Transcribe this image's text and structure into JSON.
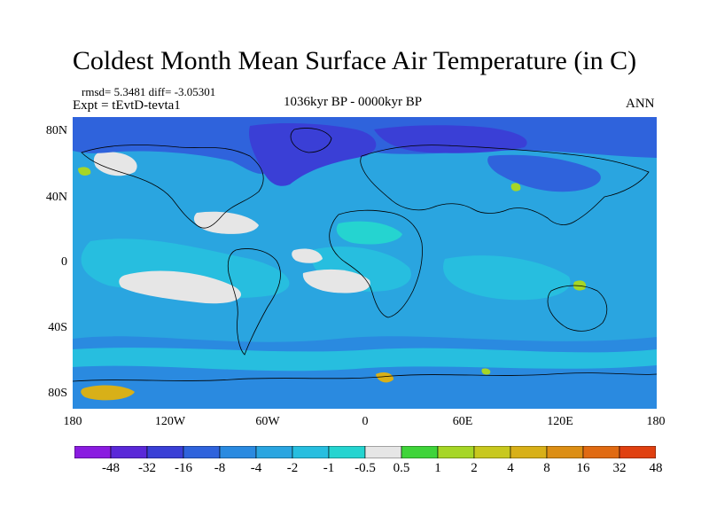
{
  "title": "Coldest Month Mean Surface Air Temperature (in C)",
  "stats": "rmsd= 5.3481 diff= -3.05301",
  "experiment": "Expt = tEvtD-tevta1",
  "period": "1036kyr BP - 0000kyr BP",
  "season": "ANN",
  "y_ticks": [
    "80N",
    "40N",
    "0",
    "40S",
    "80S"
  ],
  "x_ticks": [
    "180",
    "120W",
    "60W",
    "0",
    "60E",
    "120E",
    "180"
  ],
  "colorbar": {
    "labels": [
      "-48",
      "-32",
      "-16",
      "-8",
      "-4",
      "-2",
      "-1",
      "-0.5",
      "0.5",
      "1",
      "2",
      "4",
      "8",
      "16",
      "32",
      "48"
    ],
    "colors": [
      "#8a1be0",
      "#5a28d8",
      "#3a3fd6",
      "#2f63dc",
      "#2a8ae0",
      "#2aa5e0",
      "#27bedf",
      "#25d4d0",
      "#e6e6e6",
      "#3fd43a",
      "#a6d626",
      "#c8c81e",
      "#d8b018",
      "#dc8e14",
      "#e06a12",
      "#e04010"
    ]
  },
  "map_colors": {
    "background": "#2aa5e0",
    "cold_ocean": "#2a8ae0",
    "north_cold": "#2f63dc",
    "north_coldest": "#3a3fd6",
    "light": "#27bedf",
    "near_zero": "#e6e6e6",
    "warm": "#a6d626",
    "warmer": "#d8b018",
    "teal": "#25d4d0"
  }
}
